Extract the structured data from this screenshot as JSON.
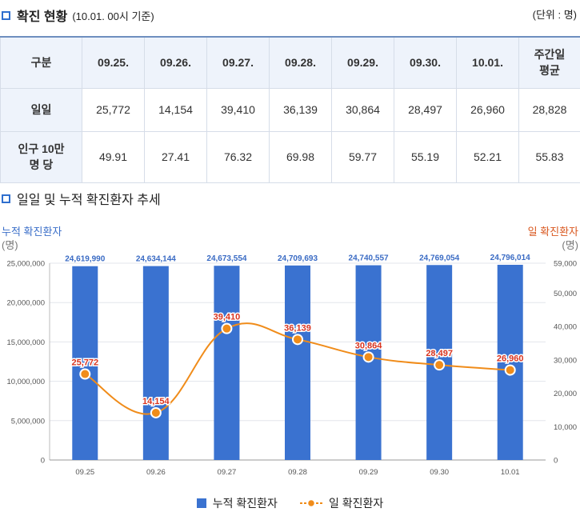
{
  "section1": {
    "title": "확진 현황",
    "subtitle": "(10.01. 00시 기준)",
    "unit": "(단위 : 명)"
  },
  "table": {
    "corner": "구분",
    "columns": [
      "09.25.",
      "09.26.",
      "09.27.",
      "09.28.",
      "09.29.",
      "09.30.",
      "10.01.",
      "주간일 평균"
    ],
    "rows": [
      {
        "label": "일일",
        "values": [
          "25,772",
          "14,154",
          "39,410",
          "36,139",
          "30,864",
          "28,497",
          "26,960",
          "28,828"
        ]
      },
      {
        "label": "인구 10만 명 당",
        "values": [
          "49.91",
          "27.41",
          "76.32",
          "69.98",
          "59.77",
          "55.19",
          "52.21",
          "55.83"
        ]
      }
    ]
  },
  "section2": {
    "title": "일일 및 누적 확진환자 추세"
  },
  "chart_data": {
    "type": "bar",
    "categories": [
      "09.25",
      "09.26",
      "09.27",
      "09.28",
      "09.29",
      "09.30",
      "10.01"
    ],
    "left_axis": {
      "title": "누적 확진환자",
      "unit": "(명)",
      "ticks": [
        "25,000,000",
        "20,000,000",
        "15,000,000",
        "10,000,000",
        "5,000,000",
        "0"
      ],
      "range": [
        0,
        25000000
      ]
    },
    "right_axis": {
      "title": "일 확진환자",
      "unit": "(명)",
      "ticks": [
        "59,000",
        "50,000",
        "40,000",
        "30,000",
        "20,000",
        "10,000",
        "0"
      ],
      "range": [
        0,
        59000
      ]
    },
    "series": [
      {
        "name": "누적 확진환자",
        "type": "bar",
        "axis": "left",
        "color": "#3a72d0",
        "values": [
          24619990,
          24634144,
          24673554,
          24709693,
          24740557,
          24769054,
          24796014
        ],
        "labels": [
          "24,619,990",
          "24,634,144",
          "24,673,554",
          "24,709,693",
          "24,740,557",
          "24,769,054",
          "24,796,014"
        ]
      },
      {
        "name": "일 확진환자",
        "type": "line",
        "axis": "right",
        "color": "#f08c1a",
        "values": [
          25772,
          14154,
          39410,
          36139,
          30864,
          28497,
          26960
        ],
        "labels": [
          "25,772",
          "14,154",
          "39,410",
          "36,139",
          "30,864",
          "28,497",
          "26,960"
        ]
      }
    ],
    "grid": true,
    "legend": "bottom-center"
  }
}
